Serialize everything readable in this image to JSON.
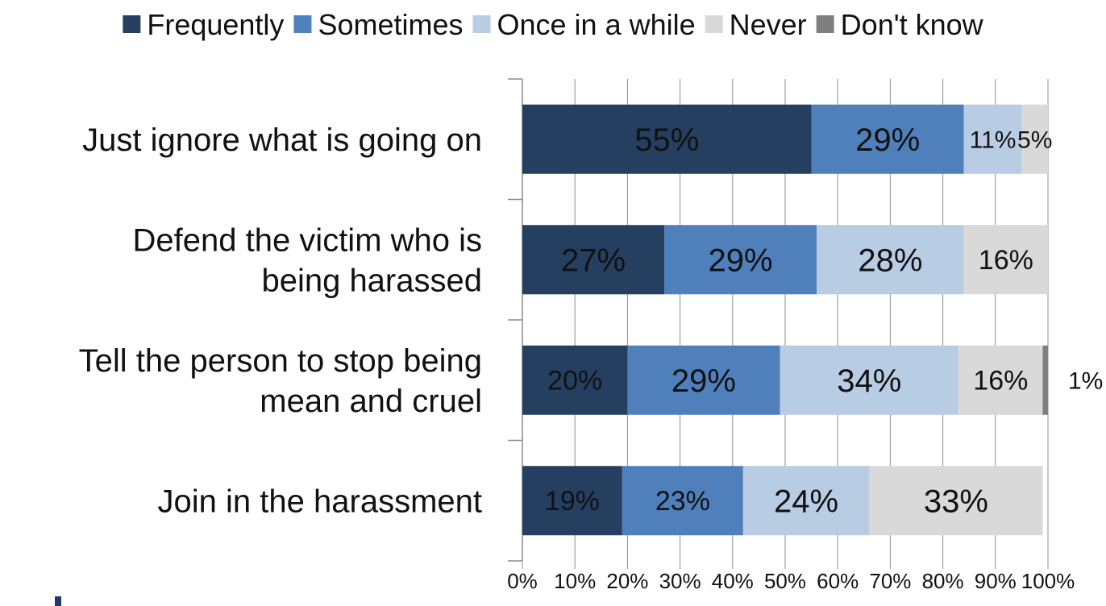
{
  "chart_data": {
    "type": "bar",
    "orientation": "horizontal",
    "stacked": true,
    "percent_stacked": true,
    "categories": [
      [
        "Just ignore what is going on"
      ],
      [
        "Defend the victim who is",
        "being harassed"
      ],
      [
        "Tell the person to stop being",
        "mean and cruel"
      ],
      [
        "Join in the harassment"
      ]
    ],
    "series": [
      {
        "name": "Frequently",
        "color": "#253f61",
        "label_color": "#ffffff",
        "values": [
          55,
          27,
          20,
          19
        ],
        "labels": [
          "55%",
          "27%",
          "20%",
          "19%"
        ]
      },
      {
        "name": "Sometimes",
        "color": "#4f80bc",
        "label_color": "#111111",
        "values": [
          29,
          29,
          29,
          23
        ],
        "labels": [
          "29%",
          "29%",
          "29%",
          "23%"
        ]
      },
      {
        "name": "Once in a while",
        "color": "#b8cce4",
        "label_color": "#111111",
        "values": [
          11,
          28,
          34,
          24
        ],
        "labels": [
          "11%",
          "28%",
          "34%",
          "24%"
        ]
      },
      {
        "name": "Never",
        "color": "#d9d9d9",
        "label_color": "#111111",
        "values": [
          5,
          16,
          16,
          33
        ],
        "labels": [
          "5%",
          "16%",
          "16%",
          "33%"
        ]
      },
      {
        "name": "Don't know",
        "color": "#7f7f7f",
        "label_color": "#111111",
        "values": [
          0,
          0,
          1,
          0
        ],
        "labels": [
          "",
          "",
          "1%",
          ""
        ]
      }
    ],
    "x_ticks": [
      "0%",
      "10%",
      "20%",
      "30%",
      "40%",
      "50%",
      "60%",
      "70%",
      "80%",
      "90%",
      "100%"
    ],
    "xlim": [
      0,
      100
    ],
    "title": "",
    "xlabel": "",
    "ylabel": "",
    "grid": "vertical",
    "legend_position": "top"
  }
}
